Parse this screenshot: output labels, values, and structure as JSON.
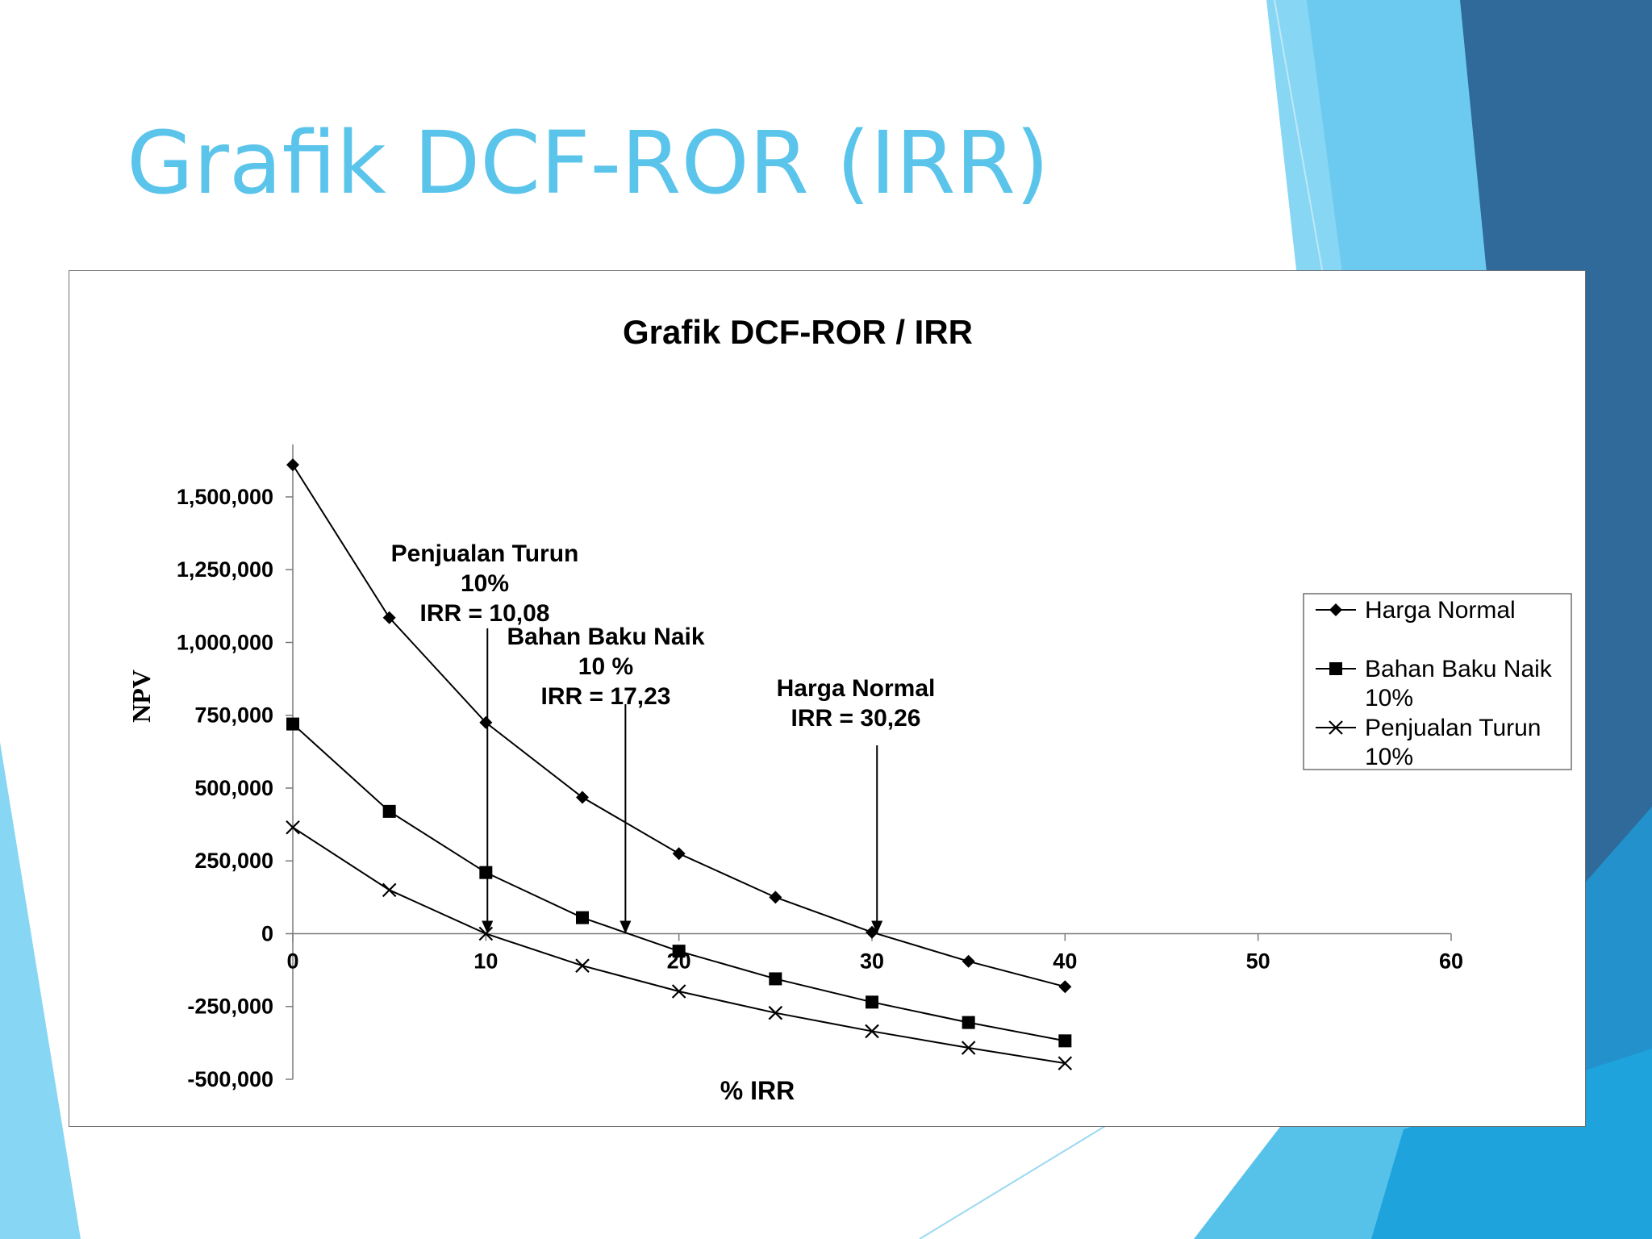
{
  "slide": {
    "title": "Grafik DCF-ROR (IRR)",
    "colors": {
      "title": "#5bc4eb",
      "accent_light": "#87d6f3",
      "accent_mid": "#2ea7dd",
      "accent_dark": "#2f6a9a"
    }
  },
  "chart_data": {
    "type": "line",
    "title": "Grafik DCF-ROR / IRR",
    "xlabel": "% IRR",
    "ylabel": "NPV",
    "xlim": [
      0,
      60
    ],
    "ylim": [
      -500000,
      1500000
    ],
    "x_ticks": [
      0,
      10,
      20,
      30,
      40,
      50,
      60
    ],
    "y_ticks": [
      -500000,
      -250000,
      0,
      250000,
      500000,
      750000,
      1000000,
      1250000,
      1500000
    ],
    "x_tick_labels": [
      "0",
      "10",
      "20",
      "30",
      "40",
      "50",
      "60"
    ],
    "y_tick_labels": [
      "-500,000",
      "-250,000",
      "0",
      "250,000",
      "500,000",
      "750,000",
      "1,000,000",
      "1,250,000",
      "1,500,000"
    ],
    "grid": false,
    "legend_position": "right",
    "x": [
      0,
      5,
      10,
      15,
      20,
      25,
      30,
      35,
      40
    ],
    "series": [
      {
        "name": "Harga Normal",
        "marker": "diamond",
        "values": [
          1610000,
          1085000,
          725000,
          468000,
          275000,
          125000,
          5000,
          -95000,
          -182000
        ]
      },
      {
        "name": "Bahan Baku Naik 10%",
        "marker": "square",
        "values": [
          720000,
          420000,
          210000,
          55000,
          -60000,
          -155000,
          -235000,
          -305000,
          -368000
        ]
      },
      {
        "name": "Penjualan Turun 10%",
        "marker": "x",
        "values": [
          365000,
          150000,
          0,
          -110000,
          -198000,
          -272000,
          -335000,
          -392000,
          -445000
        ]
      }
    ],
    "annotations": [
      {
        "lines": [
          "Penjualan Turun",
          "10%",
          "IRR = 10,08"
        ],
        "x": 10.08,
        "y": 0
      },
      {
        "lines": [
          "Bahan Baku Naik",
          "10 %",
          "IRR = 17,23"
        ],
        "x": 17.23,
        "y": 0
      },
      {
        "lines": [
          "Harga Normal",
          "IRR = 30,26"
        ],
        "x": 30.26,
        "y": 0
      }
    ]
  }
}
